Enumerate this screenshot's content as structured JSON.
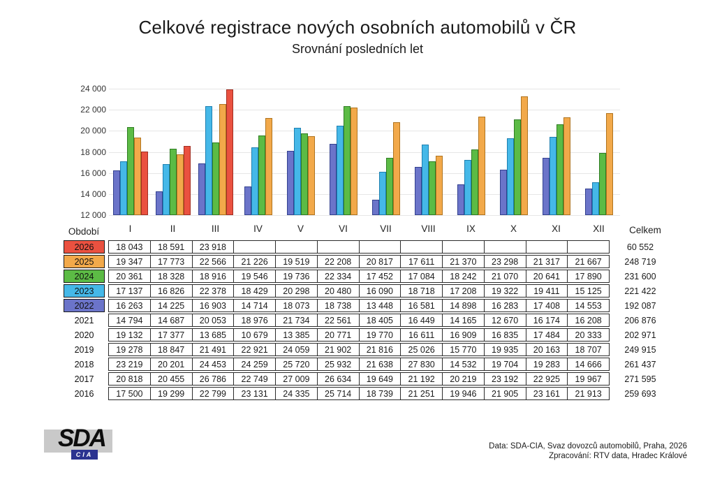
{
  "title": "Celkové registrace nových osobních automobilů v ČR",
  "subtitle": "Srovnání posledních let",
  "chart_data": {
    "type": "bar",
    "title": "Celkové registrace nových osobních automobilů v ČR",
    "subtitle": "Srovnání posledních let",
    "categories": [
      "I",
      "II",
      "III",
      "IV",
      "V",
      "VI",
      "VII",
      "VIII",
      "IX",
      "X",
      "XI",
      "XII"
    ],
    "xlabel": "Období",
    "ylabel": "",
    "ylim": [
      12000,
      24000
    ],
    "ytick_step": 2000,
    "ytick_labels": [
      "24 000",
      "22 000",
      "20 000",
      "18 000",
      "16 000",
      "14 000",
      "12 000"
    ],
    "grid": "horizontal",
    "legend_position": "none (series colors keyed to year rows in table below)",
    "series": [
      {
        "name": "2022",
        "color": "#6b74c9",
        "border": "#33418f",
        "values": [
          16263,
          14225,
          16903,
          14714,
          18073,
          18738,
          13448,
          16581,
          14898,
          16283,
          17408,
          14553
        ]
      },
      {
        "name": "2023",
        "color": "#45b8e8",
        "border": "#1d7fb0",
        "values": [
          17137,
          16826,
          22378,
          18429,
          20298,
          20480,
          16090,
          18718,
          17208,
          19322,
          19411,
          15125
        ]
      },
      {
        "name": "2024",
        "color": "#5cbb45",
        "border": "#2f7d23",
        "values": [
          20361,
          18328,
          18916,
          19546,
          19736,
          22334,
          17452,
          17084,
          18242,
          21070,
          20641,
          17890
        ]
      },
      {
        "name": "2025",
        "color": "#f2a94a",
        "border": "#b0741f",
        "values": [
          19347,
          17773,
          22566,
          21226,
          19519,
          22208,
          20817,
          17611,
          21370,
          23298,
          21317,
          21667
        ]
      },
      {
        "name": "2026",
        "color": "#ea5140",
        "border": "#a12e22",
        "values": [
          18043,
          18591,
          23918,
          null,
          null,
          null,
          null,
          null,
          null,
          null,
          null,
          null
        ]
      }
    ]
  },
  "table": {
    "period_header": "Období",
    "total_header": "Celkem",
    "col_headers": [
      "I",
      "II",
      "III",
      "IV",
      "V",
      "VI",
      "VII",
      "VIII",
      "IX",
      "X",
      "XI",
      "XII"
    ],
    "rows": [
      {
        "year": "2026",
        "color": "#ea5140",
        "values": [
          "18 043",
          "18 591",
          "23 918",
          "",
          "",
          "",
          "",
          "",
          "",
          "",
          "",
          ""
        ],
        "total": "60 552"
      },
      {
        "year": "2025",
        "color": "#f2a94a",
        "values": [
          "19 347",
          "17 773",
          "22 566",
          "21 226",
          "19 519",
          "22 208",
          "20 817",
          "17 611",
          "21 370",
          "23 298",
          "21 317",
          "21 667"
        ],
        "total": "248 719"
      },
      {
        "year": "2024",
        "color": "#5cbb45",
        "values": [
          "20 361",
          "18 328",
          "18 916",
          "19 546",
          "19 736",
          "22 334",
          "17 452",
          "17 084",
          "18 242",
          "21 070",
          "20 641",
          "17 890"
        ],
        "total": "231 600"
      },
      {
        "year": "2023",
        "color": "#45b8e8",
        "values": [
          "17 137",
          "16 826",
          "22 378",
          "18 429",
          "20 298",
          "20 480",
          "16 090",
          "18 718",
          "17 208",
          "19 322",
          "19 411",
          "15 125"
        ],
        "total": "221 422"
      },
      {
        "year": "2022",
        "color": "#6b74c9",
        "values": [
          "16 263",
          "14 225",
          "16 903",
          "14 714",
          "18 073",
          "18 738",
          "13 448",
          "16 581",
          "14 898",
          "16 283",
          "17 408",
          "14 553"
        ],
        "total": "192 087"
      },
      {
        "year": "2021",
        "color": null,
        "values": [
          "14 794",
          "14 687",
          "20 053",
          "18 976",
          "21 734",
          "22 561",
          "18 405",
          "16 449",
          "14 165",
          "12 670",
          "16 174",
          "16 208"
        ],
        "total": "206 876"
      },
      {
        "year": "2020",
        "color": null,
        "values": [
          "19 132",
          "17 377",
          "13 685",
          "10 679",
          "13 385",
          "20 771",
          "19 770",
          "16 611",
          "16 909",
          "16 835",
          "17 484",
          "20 333"
        ],
        "total": "202 971"
      },
      {
        "year": "2019",
        "color": null,
        "values": [
          "19 278",
          "18 847",
          "21 491",
          "22 921",
          "24 059",
          "21 902",
          "21 816",
          "25 026",
          "15 770",
          "19 935",
          "20 163",
          "18 707"
        ],
        "total": "249 915"
      },
      {
        "year": "2018",
        "color": null,
        "values": [
          "23 219",
          "20 201",
          "24 453",
          "24 259",
          "25 720",
          "25 932",
          "21 638",
          "27 830",
          "14 532",
          "19 704",
          "19 283",
          "14 666"
        ],
        "total": "261 437"
      },
      {
        "year": "2017",
        "color": null,
        "values": [
          "20 818",
          "20 455",
          "26 786",
          "22 749",
          "27 009",
          "26 634",
          "19 649",
          "21 192",
          "20 219",
          "23 192",
          "22 925",
          "19 967"
        ],
        "total": "271 595"
      },
      {
        "year": "2016",
        "color": null,
        "values": [
          "17 500",
          "19 299",
          "22 799",
          "23 131",
          "24 335",
          "25 714",
          "18 739",
          "21 251",
          "19 946",
          "21 905",
          "23 161",
          "21 913"
        ],
        "total": "259 693"
      }
    ]
  },
  "logo": {
    "line1": "SDA",
    "line2": "CIA"
  },
  "footer": {
    "line1": "Data: SDA-CIA, Svaz dovozců automobilů, Praha, 2026",
    "line2": "Zpracování: RTV data, Hradec Králové"
  }
}
